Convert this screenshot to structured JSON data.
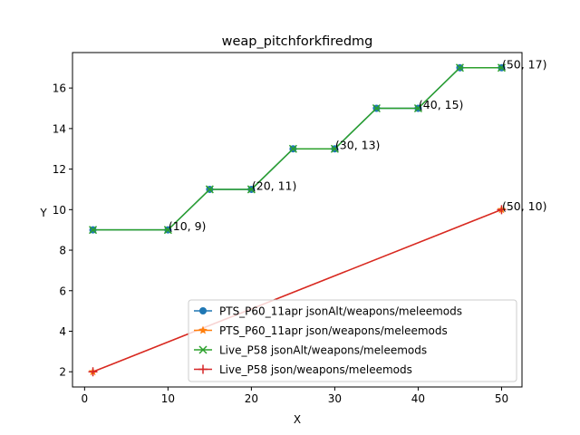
{
  "chart_data": {
    "type": "line",
    "title": "weap_pitchforkfiredmg",
    "xlabel": "X",
    "ylabel": "Y",
    "xlim": [
      -1.45,
      52.45
    ],
    "ylim": [
      1.25,
      17.75
    ],
    "xticks": [
      0,
      10,
      20,
      30,
      40,
      50
    ],
    "yticks": [
      2,
      4,
      6,
      8,
      10,
      12,
      14,
      16
    ],
    "grid": false,
    "legend_position": "lower-right",
    "series": [
      {
        "name": "PTS_P60_11apr jsonAlt/weapons/meleemods",
        "color": "#1f77b4",
        "marker": "circle",
        "x": [
          1,
          10,
          15,
          20,
          25,
          30,
          35,
          40,
          45,
          50
        ],
        "y": [
          9,
          9,
          11,
          11,
          13,
          13,
          15,
          15,
          17,
          17
        ]
      },
      {
        "name": "PTS_P60_11apr json/weapons/meleemods",
        "color": "#ff7f0e",
        "marker": "star",
        "x": [
          1,
          50
        ],
        "y": [
          2,
          10
        ]
      },
      {
        "name": "Live_P58 jsonAlt/weapons/meleemods",
        "color": "#2ca02c",
        "marker": "x",
        "x": [
          1,
          10,
          15,
          20,
          25,
          30,
          35,
          40,
          45,
          50
        ],
        "y": [
          9,
          9,
          11,
          11,
          13,
          13,
          15,
          15,
          17,
          17
        ]
      },
      {
        "name": "Live_P58 json/weapons/meleemods",
        "color": "#d62728",
        "marker": "plus",
        "x": [
          1,
          50
        ],
        "y": [
          2,
          10
        ]
      }
    ],
    "annotations": [
      {
        "x": 10,
        "y": 9,
        "text": "(10, 9)"
      },
      {
        "x": 20,
        "y": 11,
        "text": "(20, 11)"
      },
      {
        "x": 30,
        "y": 13,
        "text": "(30, 13)"
      },
      {
        "x": 40,
        "y": 15,
        "text": "(40, 15)"
      },
      {
        "x": 50,
        "y": 17,
        "text": "(50, 17)"
      },
      {
        "x": 50,
        "y": 10,
        "text": "(50, 10)"
      }
    ]
  }
}
